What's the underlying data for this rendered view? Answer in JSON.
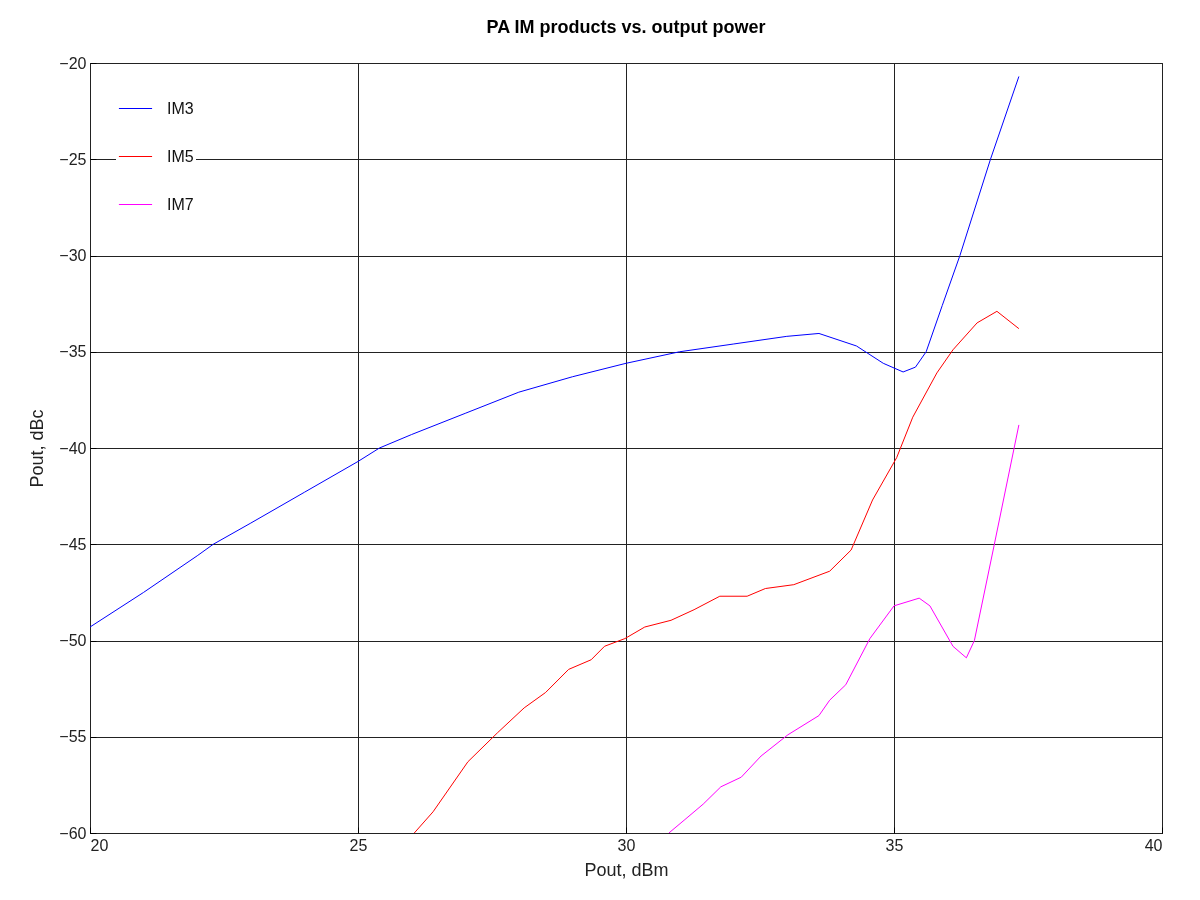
{
  "chart_data": {
    "type": "line",
    "title": "PA IM products vs. output power",
    "xlabel": "Pout, dBm",
    "ylabel": "Pout, dBc",
    "xlim": [
      20,
      40
    ],
    "xticks": [
      20,
      25,
      30,
      35,
      40
    ],
    "ylim": [
      -60,
      -20
    ],
    "yticks": [
      -60,
      -55,
      -50,
      -45,
      -40,
      -35,
      -30,
      -25,
      -20
    ],
    "grid": true,
    "legend": "top left",
    "line_style": "solid",
    "marker": "none",
    "series": [
      {
        "name": "IM3",
        "color": "#0000ff",
        "x": [
          20,
          21,
          22,
          22.3,
          23,
          24,
          25,
          25.4,
          26,
          27,
          28,
          29,
          30,
          31,
          32,
          33,
          33.6,
          34.3,
          34.8,
          35.17,
          35.4,
          35.6,
          35.9,
          36.23,
          36.8,
          37.33
        ],
        "values": [
          -49.3,
          -47.5,
          -45.6,
          -45,
          -43.9,
          -42.3,
          -40.7,
          -40,
          -39.3,
          -38.2,
          -37.1,
          -36.3,
          -35.6,
          -35.0,
          -34.6,
          -34.2,
          -34.05,
          -34.7,
          -35.6,
          -36.05,
          -35.8,
          -35,
          -32.6,
          -30,
          -25,
          -20.7
        ]
      },
      {
        "name": "IM5",
        "color": "#ff0000",
        "x": [
          26.05,
          26.4,
          27.05,
          27.6,
          28.1,
          28.5,
          28.93,
          29.35,
          29.6,
          29.98,
          30.35,
          30.84,
          31.27,
          31.75,
          32.26,
          32.6,
          33.13,
          33.8,
          34.2,
          34.6,
          35.05,
          35.35,
          35.8,
          36.1,
          36.55,
          36.92,
          37.33
        ],
        "values": [
          -60,
          -58.9,
          -56.3,
          -54.8,
          -53.5,
          -52.7,
          -51.5,
          -51.0,
          -50.3,
          -49.9,
          -49.3,
          -48.95,
          -48.4,
          -47.7,
          -47.7,
          -47.3,
          -47.1,
          -46.4,
          -45.3,
          -42.7,
          -40.5,
          -38.4,
          -36.1,
          -34.9,
          -33.5,
          -32.9,
          -33.8
        ]
      },
      {
        "name": "IM7",
        "color": "#ff00ff",
        "x": [
          30.8,
          31.1,
          31.44,
          31.77,
          32.15,
          32.52,
          33.02,
          33.6,
          33.8,
          34.1,
          34.55,
          35.0,
          35.47,
          35.67,
          36.1,
          36.35,
          36.5,
          36.85,
          37.33
        ],
        "values": [
          -60,
          -59.3,
          -58.5,
          -57.6,
          -57.1,
          -56.0,
          -54.9,
          -53.9,
          -53.1,
          -52.3,
          -49.9,
          -48.2,
          -47.8,
          -48.2,
          -50.3,
          -50.9,
          -50.0,
          -45.3,
          -38.8
        ]
      }
    ]
  }
}
